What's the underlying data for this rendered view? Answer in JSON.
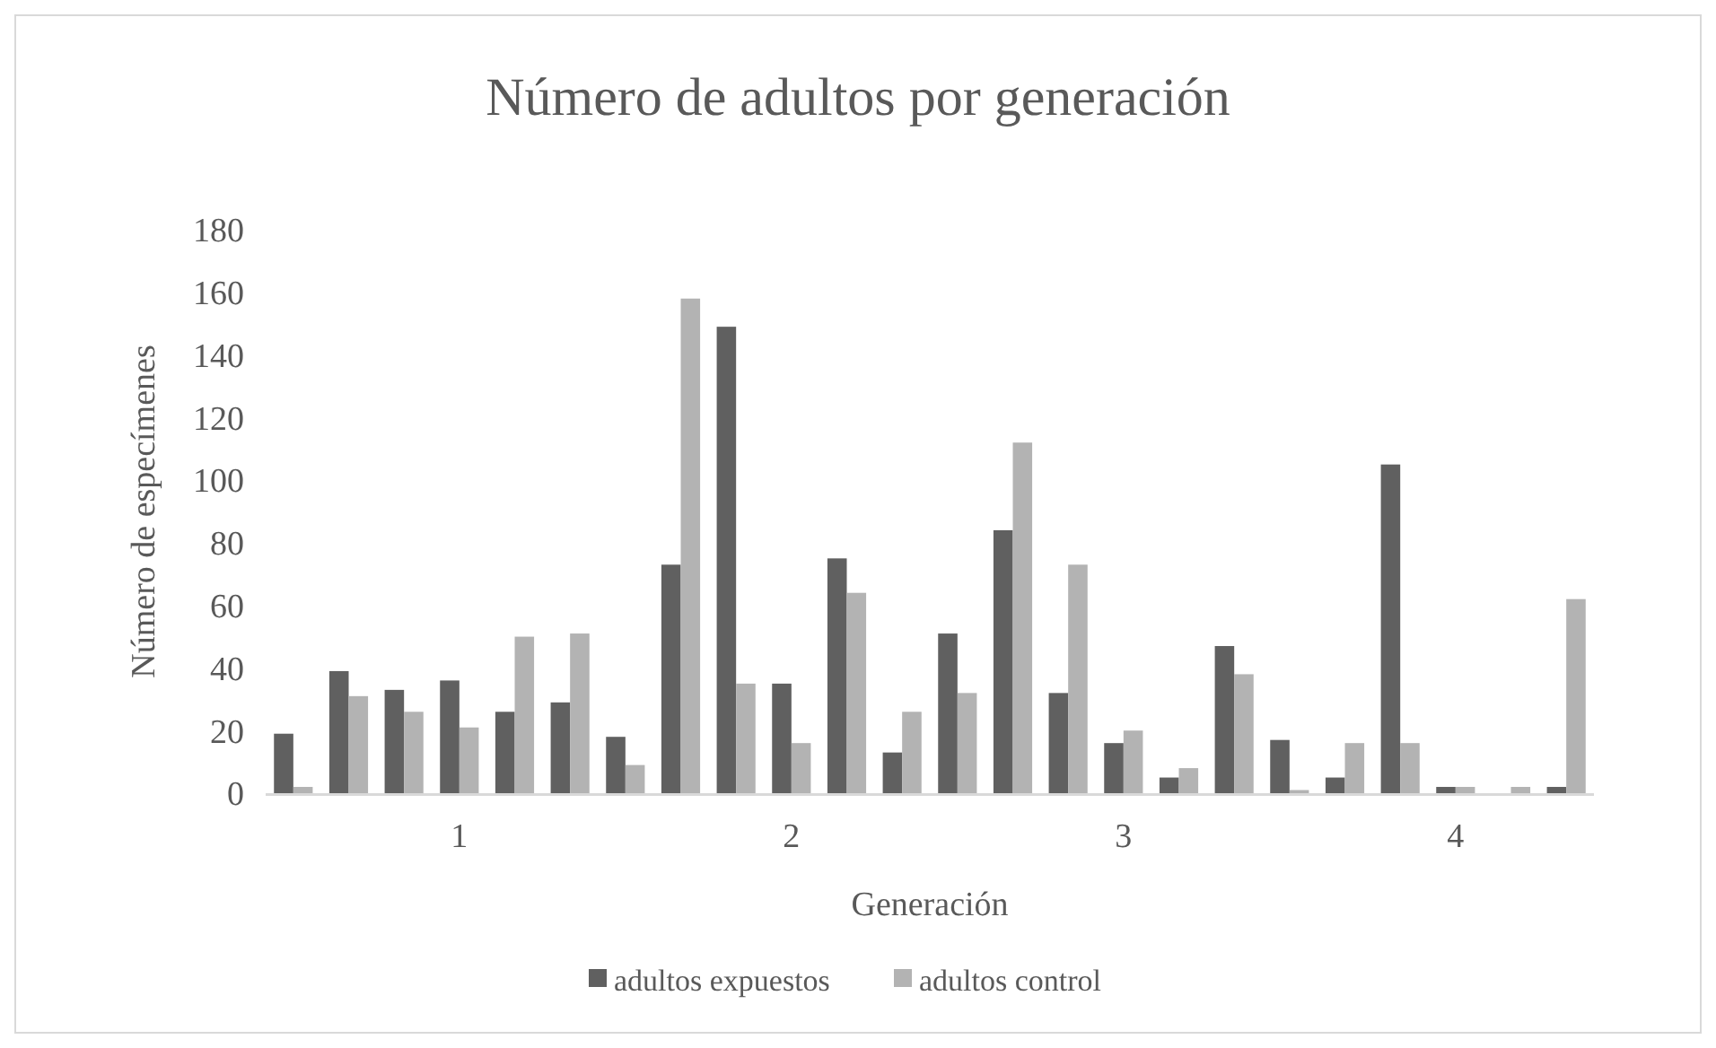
{
  "chart_data": {
    "type": "bar",
    "title": "Número de adultos por generación",
    "xlabel": "Generación",
    "ylabel": "Número de especímenes",
    "categories": [
      null,
      null,
      null,
      "1",
      null,
      null,
      null,
      null,
      null,
      "2",
      null,
      null,
      null,
      null,
      null,
      "3",
      null,
      null,
      null,
      null,
      null,
      "4",
      null,
      null
    ],
    "series": [
      {
        "name": "adultos expuestos",
        "color": "#606060",
        "values": [
          19,
          39,
          33,
          36,
          26,
          29,
          18,
          73,
          149,
          35,
          75,
          13,
          51,
          84,
          32,
          16,
          5,
          47,
          17,
          5,
          105,
          2,
          0,
          2
        ]
      },
      {
        "name": "adultos control",
        "color": "#b3b3b3",
        "values": [
          2,
          31,
          26,
          21,
          50,
          51,
          9,
          158,
          35,
          16,
          64,
          26,
          32,
          112,
          73,
          20,
          8,
          38,
          1,
          16,
          16,
          2,
          2,
          62
        ]
      }
    ],
    "ylim": [
      0,
      180
    ],
    "yticks": [
      0,
      20,
      40,
      60,
      80,
      100,
      120,
      140,
      160,
      180
    ],
    "grid": false,
    "legend": "bottom"
  }
}
